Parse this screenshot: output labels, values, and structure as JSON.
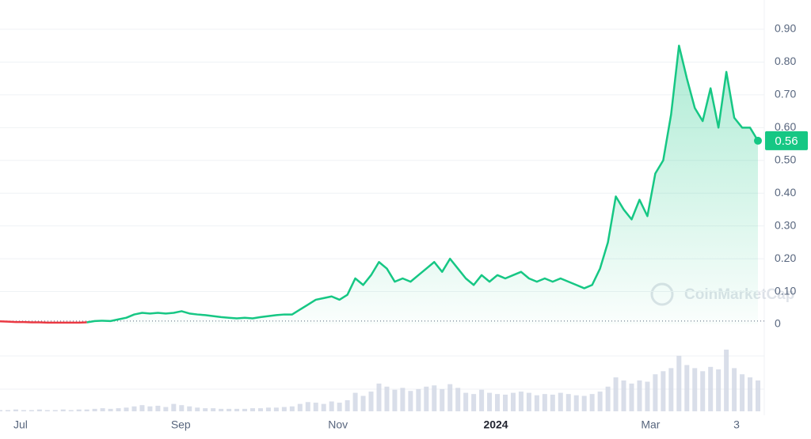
{
  "chart_data": {
    "type": "line",
    "series": [
      {
        "name": "Price",
        "color": "#16c784",
        "values": [
          0.009,
          0.008,
          0.007,
          0.007,
          0.006,
          0.006,
          0.005,
          0.005,
          0.005,
          0.005,
          0.005,
          0.006,
          0.01,
          0.011,
          0.01,
          0.015,
          0.02,
          0.03,
          0.035,
          0.033,
          0.035,
          0.033,
          0.035,
          0.04,
          0.033,
          0.03,
          0.028,
          0.025,
          0.022,
          0.02,
          0.018,
          0.02,
          0.018,
          0.022,
          0.025,
          0.028,
          0.03,
          0.03,
          0.045,
          0.06,
          0.075,
          0.08,
          0.085,
          0.075,
          0.09,
          0.14,
          0.12,
          0.15,
          0.19,
          0.17,
          0.13,
          0.14,
          0.13,
          0.15,
          0.17,
          0.19,
          0.16,
          0.2,
          0.17,
          0.14,
          0.12,
          0.15,
          0.13,
          0.15,
          0.14,
          0.15,
          0.16,
          0.14,
          0.13,
          0.14,
          0.13,
          0.14,
          0.13,
          0.12,
          0.11,
          0.12,
          0.17,
          0.25,
          0.39,
          0.35,
          0.32,
          0.38,
          0.33,
          0.46,
          0.5,
          0.64,
          0.85,
          0.75,
          0.66,
          0.62,
          0.72,
          0.6,
          0.77,
          0.63,
          0.6,
          0.6,
          0.56
        ],
        "volume": [
          0.02,
          0.02,
          0.03,
          0.02,
          0.02,
          0.03,
          0.02,
          0.02,
          0.03,
          0.02,
          0.03,
          0.03,
          0.04,
          0.05,
          0.04,
          0.05,
          0.06,
          0.08,
          0.1,
          0.08,
          0.09,
          0.07,
          0.12,
          0.1,
          0.08,
          0.06,
          0.05,
          0.05,
          0.04,
          0.04,
          0.04,
          0.04,
          0.05,
          0.05,
          0.06,
          0.06,
          0.07,
          0.08,
          0.12,
          0.15,
          0.14,
          0.12,
          0.16,
          0.14,
          0.18,
          0.3,
          0.25,
          0.32,
          0.45,
          0.4,
          0.35,
          0.38,
          0.33,
          0.36,
          0.4,
          0.42,
          0.36,
          0.44,
          0.38,
          0.3,
          0.28,
          0.35,
          0.3,
          0.28,
          0.27,
          0.3,
          0.32,
          0.3,
          0.26,
          0.28,
          0.27,
          0.3,
          0.28,
          0.26,
          0.25,
          0.28,
          0.32,
          0.4,
          0.55,
          0.5,
          0.45,
          0.5,
          0.48,
          0.6,
          0.65,
          0.7,
          0.9,
          0.75,
          0.7,
          0.65,
          0.72,
          0.68,
          1.0,
          0.7,
          0.6,
          0.55,
          0.5
        ]
      }
    ],
    "baseline": 0.01,
    "down_color": "#ea3943",
    "ylim": [
      0,
      0.99
    ],
    "yticks": [
      0,
      {
        "value": 0.1,
        "label": "0.10"
      },
      {
        "value": 0.2,
        "label": "0.20"
      },
      {
        "value": 0.3,
        "label": "0.30"
      },
      {
        "value": 0.4,
        "label": "0.40"
      },
      {
        "value": 0.5,
        "label": "0.50"
      },
      {
        "value": 0.6,
        "label": "0.60"
      },
      {
        "value": 0.7,
        "label": "0.70"
      },
      {
        "value": 0.8,
        "label": "0.80"
      },
      {
        "value": 0.9,
        "label": "0.90"
      }
    ],
    "xlim": [
      0,
      96
    ],
    "xticks": [
      {
        "value": 2.6,
        "label": "Jul"
      },
      {
        "value": 22.9,
        "label": "Sep"
      },
      {
        "value": 42.8,
        "label": "Nov"
      },
      {
        "value": 62.8,
        "label": "2024"
      },
      {
        "value": 82.4,
        "label": "Mar"
      },
      {
        "value": 93.3,
        "label": "3"
      }
    ],
    "grid": true,
    "watermark": "CoinMarketCap"
  }
}
